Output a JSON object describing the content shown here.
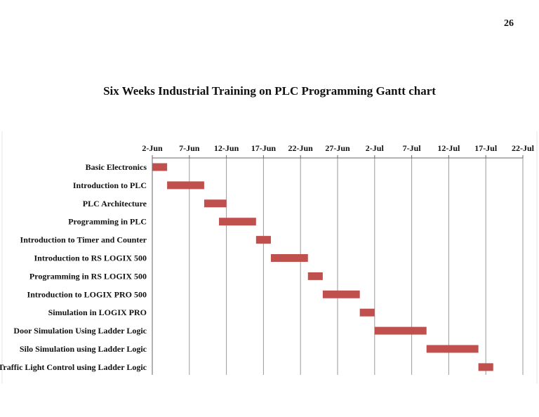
{
  "page": {
    "number": "26"
  },
  "chart_data": {
    "type": "bar",
    "title": "Six Weeks Industrial Training on PLC Programming Gantt chart",
    "x_axis": {
      "type": "date",
      "min": "2024-06-02",
      "max": "2024-07-22",
      "tick_step_days": 5,
      "tick_labels": [
        "2-Jun",
        "7-Jun",
        "12-Jun",
        "17-Jun",
        "22-Jun",
        "27-Jun",
        "2-Jul",
        "7-Jul",
        "12-Jul",
        "17-Jul",
        "22-Jul"
      ],
      "position": "top"
    },
    "grid": true,
    "legend": false,
    "bar_color": "#c0504d",
    "tasks": [
      {
        "name": "Basic Electronics",
        "start": "2024-06-02",
        "end": "2024-06-04"
      },
      {
        "name": "Introduction to PLC",
        "start": "2024-06-04",
        "end": "2024-06-09"
      },
      {
        "name": "PLC Architecture",
        "start": "2024-06-09",
        "end": "2024-06-12"
      },
      {
        "name": "Programming in PLC",
        "start": "2024-06-11",
        "end": "2024-06-16"
      },
      {
        "name": "Introduction to Timer and Counter",
        "start": "2024-06-16",
        "end": "2024-06-18"
      },
      {
        "name": "Introduction to RS LOGIX 500",
        "start": "2024-06-18",
        "end": "2024-06-23"
      },
      {
        "name": "Programming in RS LOGIX 500",
        "start": "2024-06-23",
        "end": "2024-06-25"
      },
      {
        "name": "Introduction to LOGIX PRO 500",
        "start": "2024-06-25",
        "end": "2024-06-30"
      },
      {
        "name": "Simulation in LOGIX PRO",
        "start": "2024-06-30",
        "end": "2024-07-02"
      },
      {
        "name": "Door Simulation Using Ladder Logic",
        "start": "2024-07-02",
        "end": "2024-07-09"
      },
      {
        "name": "Silo Simulation using Ladder Logic",
        "start": "2024-07-09",
        "end": "2024-07-16"
      },
      {
        "name": "Traffic Light Control using Ladder Logic",
        "start": "2024-07-16",
        "end": "2024-07-18"
      }
    ]
  }
}
